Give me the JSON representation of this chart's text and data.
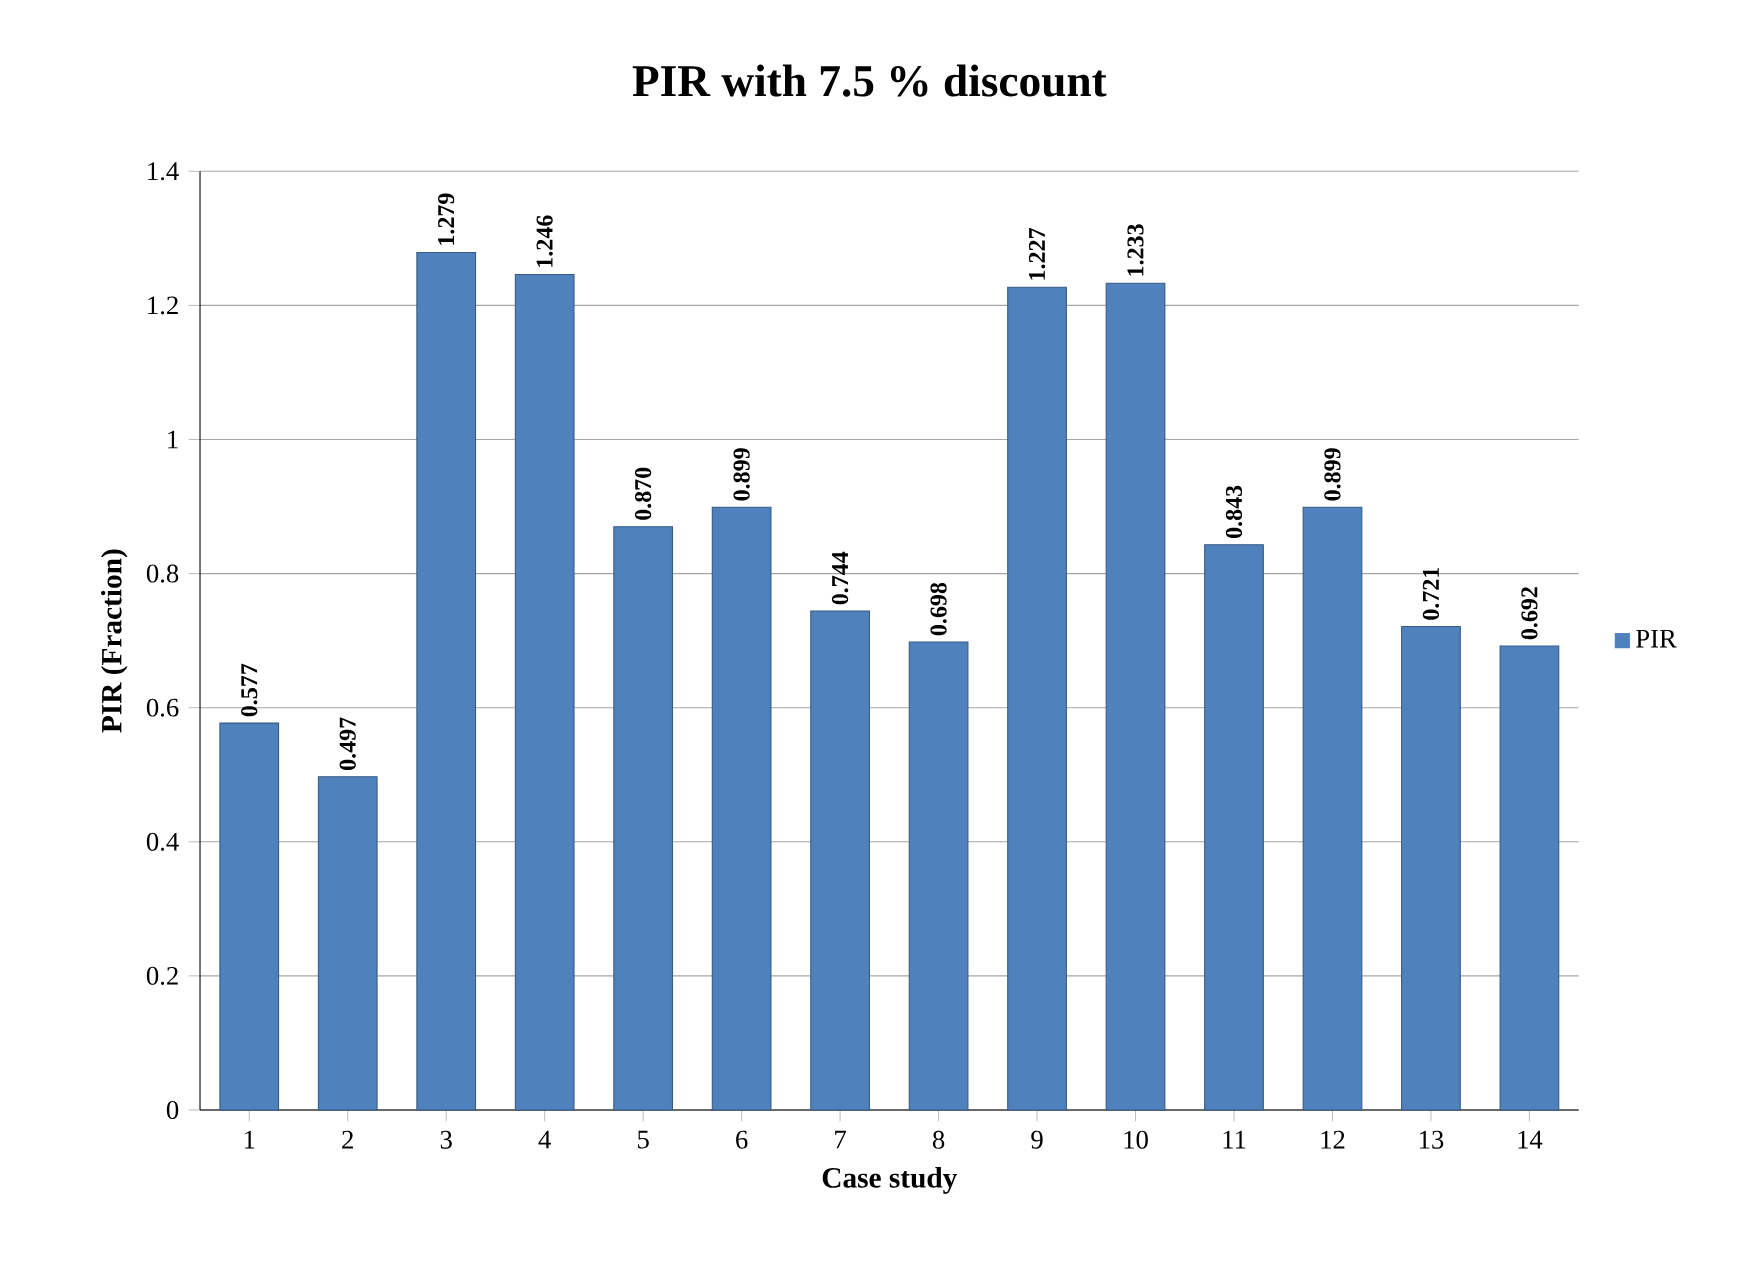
{
  "chart_data": {
    "type": "bar",
    "title": "PIR with 7.5 % discount",
    "xlabel": "Case study",
    "ylabel": "PIR (Fraction)",
    "categories": [
      "1",
      "2",
      "3",
      "4",
      "5",
      "6",
      "7",
      "8",
      "9",
      "10",
      "11",
      "12",
      "13",
      "14"
    ],
    "series": [
      {
        "name": "PIR",
        "color": "#4f81bd",
        "values": [
          0.577,
          0.497,
          1.279,
          1.246,
          0.87,
          0.899,
          0.744,
          0.698,
          1.227,
          1.233,
          0.843,
          0.899,
          0.721,
          0.692
        ],
        "value_labels": [
          "0.577",
          "0.497",
          "1.279",
          "1.246",
          "0.870",
          "0.899",
          "0.744",
          "0.698",
          "1.227",
          "1.233",
          "0.843",
          "0.899",
          "0.721",
          "0.692"
        ]
      }
    ],
    "ylim": [
      0,
      1.4
    ],
    "yticks": [
      0,
      0.2,
      0.4,
      0.6,
      0.8,
      1,
      1.2,
      1.4
    ],
    "grid": "y",
    "legend": "right"
  }
}
